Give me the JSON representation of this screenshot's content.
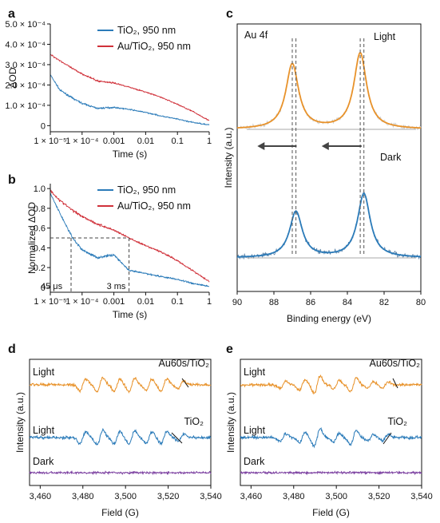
{
  "chart_data": [
    {
      "panel": "a",
      "type": "line",
      "xscale": "log",
      "xlim": [
        1e-05,
        1
      ],
      "ylim": [
        -3e-05,
        0.0005
      ],
      "xlabel": "Time (s)",
      "ylabel": "ΔOD",
      "xticks": [
        {
          "v": 1e-05,
          "label": "1 × 10⁻⁵"
        },
        {
          "v": 0.0001,
          "label": "1 × 10⁻⁴"
        },
        {
          "v": 0.001,
          "label": "0.001"
        },
        {
          "v": 0.01,
          "label": "0.01"
        },
        {
          "v": 0.1,
          "label": "0.1"
        },
        {
          "v": 1,
          "label": "1"
        }
      ],
      "yticks": [
        {
          "v": 0,
          "label": "0"
        },
        {
          "v": 0.0001,
          "label": "1.0 × 10⁻⁴"
        },
        {
          "v": 0.0002,
          "label": "2.0 × 10⁻⁴"
        },
        {
          "v": 0.0003,
          "label": "3.0 × 10⁻⁴"
        },
        {
          "v": 0.0004,
          "label": "4.0 × 10⁻⁴"
        },
        {
          "v": 0.0005,
          "label": "5.0 × 10⁻⁴"
        }
      ],
      "legend_position": "top-right",
      "series": [
        {
          "name": "TiO₂, 950 nm",
          "color": "#2b7bb9",
          "x": [
            1e-05,
            2e-05,
            5e-05,
            0.0001,
            0.0003,
            0.001,
            0.003,
            0.01,
            0.03,
            0.1,
            0.3,
            1
          ],
          "y": [
            0.00025,
            0.000175,
            0.000135,
            0.00011,
            8.5e-05,
            9e-05,
            8e-05,
            6.5e-05,
            4.8e-05,
            3.2e-05,
            1.6e-05,
            4e-06
          ]
        },
        {
          "name": "Au/TiO₂, 950 nm",
          "color": "#d0313a",
          "x": [
            1e-05,
            2e-05,
            5e-05,
            0.0001,
            0.0003,
            0.001,
            0.003,
            0.01,
            0.03,
            0.1,
            0.3,
            1
          ],
          "y": [
            0.00035,
            0.00032,
            0.00028,
            0.000255,
            0.00022,
            0.00021,
            0.00019,
            0.000165,
            0.00014,
            0.000105,
            7e-05,
            2.5e-05
          ]
        }
      ]
    },
    {
      "panel": "b",
      "type": "line",
      "xscale": "log",
      "xlim": [
        1e-05,
        1
      ],
      "ylim": [
        -0.05,
        1.05
      ],
      "xlabel": "Time (s)",
      "ylabel": "Normalized ΔOD",
      "xticks": [
        {
          "v": 1e-05,
          "label": "1 × 10⁻⁵"
        },
        {
          "v": 0.0001,
          "label": "1 × 10⁻⁴"
        },
        {
          "v": 0.001,
          "label": "0.001"
        },
        {
          "v": 0.01,
          "label": "0.01"
        },
        {
          "v": 0.1,
          "label": "0.1"
        },
        {
          "v": 1,
          "label": "1"
        }
      ],
      "yticks": [
        {
          "v": 0,
          "label": "0"
        },
        {
          "v": 0.2,
          "label": "0.2"
        },
        {
          "v": 0.4,
          "label": "0.4"
        },
        {
          "v": 0.6,
          "label": "0.6"
        },
        {
          "v": 0.8,
          "label": "0.8"
        },
        {
          "v": 1.0,
          "label": "1.0"
        }
      ],
      "legend_position": "top-right",
      "annotations": [
        {
          "label": "45 μs",
          "x": 4.5e-05,
          "y": 0.5,
          "color": "#2b7bb9"
        },
        {
          "label": "3 ms",
          "x": 0.003,
          "y": 0.5,
          "color": "#d0313a"
        }
      ],
      "series": [
        {
          "name": "TiO₂, 950 nm",
          "color": "#2b7bb9",
          "x": [
            1e-05,
            2e-05,
            5e-05,
            0.0001,
            0.0003,
            0.001,
            0.003,
            0.01,
            0.03,
            0.1,
            0.3,
            1
          ],
          "y": [
            0.95,
            0.75,
            0.5,
            0.38,
            0.3,
            0.33,
            0.17,
            0.14,
            0.11,
            0.08,
            0.04,
            0.01
          ]
        },
        {
          "name": "Au/TiO₂, 950 nm",
          "color": "#d0313a",
          "x": [
            1e-05,
            2e-05,
            5e-05,
            0.0001,
            0.0003,
            0.001,
            0.003,
            0.01,
            0.03,
            0.1,
            0.3,
            1
          ],
          "y": [
            0.98,
            0.88,
            0.78,
            0.72,
            0.64,
            0.58,
            0.5,
            0.42,
            0.36,
            0.27,
            0.17,
            0.06
          ]
        }
      ]
    },
    {
      "panel": "c",
      "type": "line",
      "xlim": [
        90,
        80
      ],
      "xlabel": "Binding energy (eV)",
      "ylabel": "Intensity (a.u.)",
      "xticks": [
        {
          "v": 90,
          "label": "90"
        },
        {
          "v": 88,
          "label": "88"
        },
        {
          "v": 86,
          "label": "86"
        },
        {
          "v": 84,
          "label": "84"
        },
        {
          "v": 82,
          "label": "82"
        },
        {
          "v": 80,
          "label": "80"
        }
      ],
      "corner_label": "Au 4f",
      "series": [
        {
          "name": "Light",
          "color": "#e8922a",
          "peaks_eV": [
            87.0,
            83.3
          ],
          "peak_heights": [
            0.9,
            1.05
          ]
        },
        {
          "name": "Dark",
          "color": "#2b7bb9",
          "peaks_eV": [
            86.8,
            83.1
          ],
          "peak_heights": [
            0.9,
            1.25
          ]
        }
      ],
      "reference_lines_eV": [
        87.0,
        86.8,
        83.3,
        83.1
      ],
      "shift_arrows": "leftward, from Light to Dark"
    },
    {
      "panel": "d",
      "type": "line",
      "xlim": [
        3455,
        3540
      ],
      "xlabel": "Field (G)",
      "ylabel": "Intensity (a.u.)",
      "xticks": [
        {
          "v": 3460,
          "label": "3,460"
        },
        {
          "v": 3480,
          "label": "3,480"
        },
        {
          "v": 3500,
          "label": "3,500"
        },
        {
          "v": 3520,
          "label": "3,520"
        },
        {
          "v": 3540,
          "label": "3,540"
        }
      ],
      "series": [
        {
          "name": "Light",
          "label": "Au60s/TiO₂",
          "color": "#e8922a"
        },
        {
          "name": "Light",
          "label": "TiO₂",
          "color": "#2b7bb9"
        },
        {
          "name": "Dark",
          "color": "#7b3fa0"
        }
      ]
    },
    {
      "panel": "e",
      "type": "line",
      "xlim": [
        3455,
        3540
      ],
      "xlabel": "Field (G)",
      "ylabel": "Intensity (a.u.)",
      "xticks": [
        {
          "v": 3460,
          "label": "3,460"
        },
        {
          "v": 3480,
          "label": "3,480"
        },
        {
          "v": 3500,
          "label": "3,500"
        },
        {
          "v": 3520,
          "label": "3,520"
        },
        {
          "v": 3540,
          "label": "3,540"
        }
      ],
      "series": [
        {
          "name": "Light",
          "label": "Au60s/TiO₂",
          "color": "#e8922a"
        },
        {
          "name": "Light",
          "label": "TiO₂",
          "color": "#2b7bb9"
        },
        {
          "name": "Dark",
          "color": "#7b3fa0"
        }
      ]
    }
  ]
}
